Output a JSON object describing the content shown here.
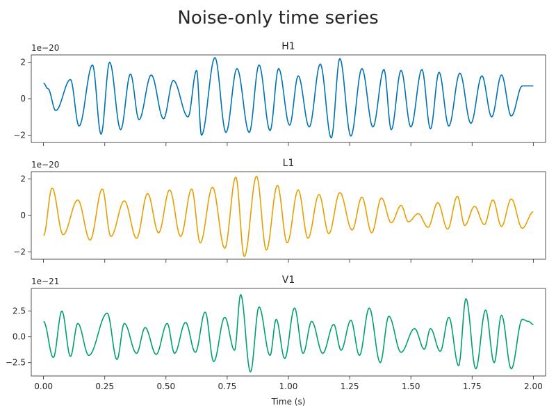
{
  "figure": {
    "suptitle": "Noise-only time series",
    "xlabel": "Time (s)",
    "xticks": [
      0.0,
      0.25,
      0.5,
      0.75,
      1.0,
      1.25,
      1.5,
      1.75,
      2.0
    ],
    "xtick_labels": [
      "0.00",
      "0.25",
      "0.50",
      "0.75",
      "1.00",
      "1.25",
      "1.50",
      "1.75",
      "2.00"
    ],
    "xlim": [
      -0.05,
      2.05
    ],
    "sharex": true,
    "grid": false
  },
  "chart_data": [
    {
      "type": "line",
      "title": "H1",
      "color": "#0072b2",
      "offset_label": "1e−20",
      "y_unit_scale": 1e-20,
      "ylim": [
        -2.4,
        2.4
      ],
      "yticks": [
        -2,
        0,
        2
      ],
      "ytick_labels": [
        "−2",
        "0",
        "2"
      ],
      "xlabel": "",
      "x": [
        0,
        0.018,
        0.05,
        0.11,
        0.145,
        0.2,
        0.235,
        0.27,
        0.315,
        0.355,
        0.39,
        0.44,
        0.49,
        0.53,
        0.59,
        0.625,
        0.645,
        0.7,
        0.745,
        0.79,
        0.84,
        0.88,
        0.925,
        0.96,
        1.005,
        1.04,
        1.085,
        1.13,
        1.175,
        1.21,
        1.255,
        1.3,
        1.345,
        1.39,
        1.42,
        1.46,
        1.5,
        1.545,
        1.58,
        1.615,
        1.655,
        1.7,
        1.745,
        1.79,
        1.83,
        1.87,
        1.91,
        1.955,
        1.99,
        2.0
      ],
      "y": [
        0.85,
        0.55,
        -0.65,
        1.05,
        -1.5,
        1.85,
        -1.95,
        2.0,
        -1.7,
        1.35,
        -1.15,
        1.3,
        -1.1,
        1.0,
        -1.0,
        1.55,
        -2.0,
        2.25,
        -1.85,
        1.65,
        -1.85,
        1.85,
        -1.75,
        1.65,
        -1.45,
        1.25,
        -1.55,
        1.9,
        -2.15,
        2.2,
        -2.05,
        1.65,
        -1.55,
        1.6,
        -1.7,
        1.55,
        -1.55,
        1.6,
        -1.65,
        1.45,
        -1.5,
        1.4,
        -1.35,
        1.25,
        -1.0,
        1.3,
        -0.95,
        0.7,
        0.7,
        0.7
      ]
    },
    {
      "type": "line",
      "title": "L1",
      "color": "#e69f00",
      "offset_label": "1e−20",
      "y_unit_scale": 1e-20,
      "ylim": [
        -2.4,
        2.4
      ],
      "yticks": [
        -2,
        0,
        2
      ],
      "ytick_labels": [
        "−2",
        "0",
        "2"
      ],
      "xlabel": "",
      "x": [
        0,
        0.035,
        0.08,
        0.14,
        0.19,
        0.24,
        0.275,
        0.33,
        0.38,
        0.425,
        0.47,
        0.515,
        0.56,
        0.605,
        0.64,
        0.69,
        0.74,
        0.785,
        0.82,
        0.87,
        0.91,
        0.955,
        0.995,
        1.04,
        1.08,
        1.125,
        1.165,
        1.21,
        1.26,
        1.3,
        1.34,
        1.38,
        1.42,
        1.46,
        1.49,
        1.53,
        1.57,
        1.61,
        1.65,
        1.69,
        1.72,
        1.76,
        1.8,
        1.835,
        1.87,
        1.91,
        1.955,
        2.0
      ],
      "y": [
        -1.1,
        1.5,
        -1.05,
        0.85,
        -1.35,
        1.45,
        -1.15,
        0.8,
        -1.25,
        1.2,
        -0.95,
        1.4,
        -1.15,
        1.45,
        -1.5,
        1.55,
        -1.8,
        2.1,
        -2.25,
        2.15,
        -1.9,
        1.65,
        -1.5,
        1.4,
        -1.25,
        1.15,
        -1.0,
        1.25,
        -0.8,
        1.0,
        -0.95,
        0.95,
        -0.4,
        0.55,
        -0.35,
        0.1,
        -0.65,
        0.7,
        -0.75,
        1.05,
        -0.55,
        0.5,
        -0.5,
        0.85,
        -0.6,
        0.9,
        -0.7,
        0.2
      ]
    },
    {
      "type": "line",
      "title": "V1",
      "color": "#009e73",
      "offset_label": "1e−21",
      "y_unit_scale": 1e-21,
      "ylim": [
        -3.8,
        4.7
      ],
      "yticks": [
        -2.5,
        0.0,
        2.5
      ],
      "ytick_labels": [
        "−2.5",
        "0.0",
        "2.5"
      ],
      "xlabel": "",
      "x": [
        0,
        0.04,
        0.075,
        0.11,
        0.14,
        0.185,
        0.26,
        0.3,
        0.33,
        0.38,
        0.415,
        0.46,
        0.505,
        0.535,
        0.58,
        0.62,
        0.66,
        0.695,
        0.74,
        0.78,
        0.805,
        0.845,
        0.88,
        0.925,
        0.95,
        0.985,
        1.025,
        1.06,
        1.095,
        1.14,
        1.185,
        1.215,
        1.255,
        1.29,
        1.33,
        1.375,
        1.41,
        1.46,
        1.515,
        1.555,
        1.58,
        1.62,
        1.655,
        1.695,
        1.725,
        1.765,
        1.805,
        1.84,
        1.87,
        1.91,
        1.955,
        1.98,
        2.0
      ],
      "y": [
        1.5,
        -2.0,
        2.5,
        -1.9,
        1.3,
        -1.8,
        2.3,
        -2.2,
        1.3,
        -1.6,
        0.9,
        -1.7,
        1.3,
        -1.6,
        1.4,
        -1.5,
        2.4,
        -2.4,
        1.9,
        -1.3,
        4.1,
        -3.4,
        2.9,
        -1.8,
        1.7,
        -2.1,
        2.8,
        -1.6,
        1.5,
        -1.6,
        1.2,
        -1.3,
        1.6,
        -1.8,
        2.8,
        -2.5,
        2.0,
        -1.5,
        0.8,
        -1.2,
        0.8,
        -1.4,
        1.9,
        -2.8,
        3.7,
        -3.1,
        2.6,
        -2.5,
        2.1,
        -3.1,
        1.7,
        1.5,
        1.2
      ]
    }
  ]
}
